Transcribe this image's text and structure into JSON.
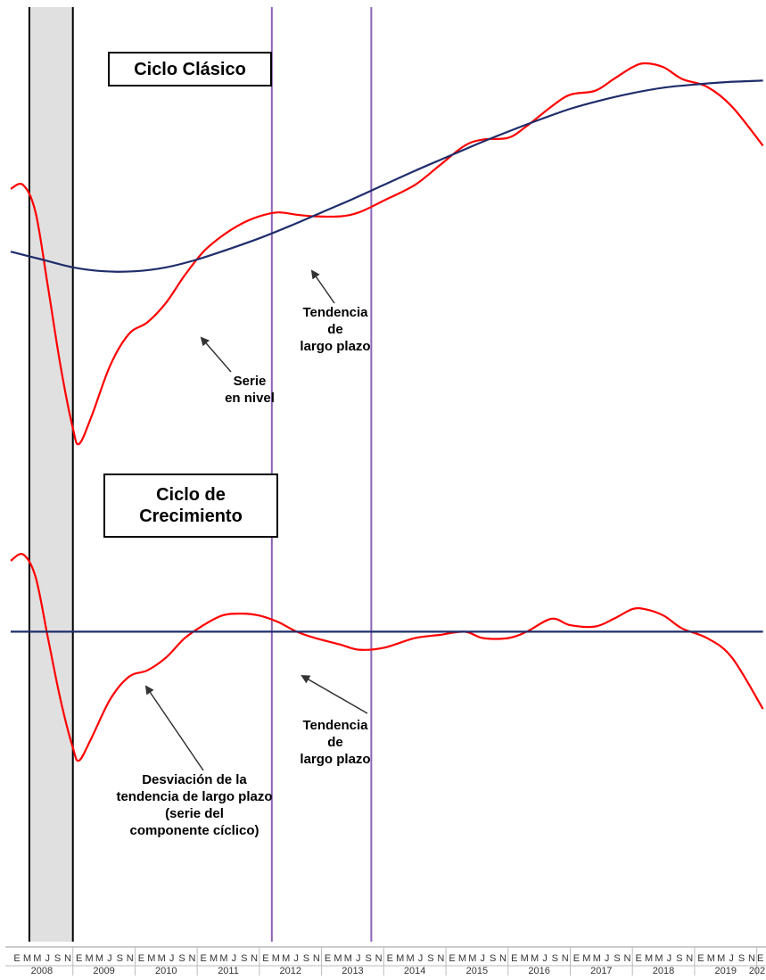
{
  "colors": {
    "series": "#ff0000",
    "trend": "#1f2d6b",
    "recession_band": "#e0e0e0",
    "reference_lines": "#8a63b8",
    "axis_text": "#333333"
  },
  "panels": {
    "top_title": "Ciclo Clásico",
    "bottom_title_line1": "Ciclo de",
    "bottom_title_line2": "Crecimiento"
  },
  "annotations": {
    "serie_en_nivel": [
      "Serie",
      "en nivel"
    ],
    "tendencia_top": [
      "Tendencia",
      "de",
      "largo plazo"
    ],
    "tendencia_bottom": [
      "Tendencia",
      "de",
      "largo plazo"
    ],
    "desviacion": [
      "Desviación de la",
      "tendencia de largo plazo",
      "(serie del",
      "componente cíclico)"
    ]
  },
  "chart_data": [
    {
      "type": "line",
      "panel": "Ciclo Clásico",
      "x_unit": "year",
      "series": [
        {
          "values": [
            [
              2008.0,
              76.5
            ],
            [
              2008.2,
              77.0
            ],
            [
              2008.4,
              73.5
            ],
            [
              2008.6,
              64.0
            ],
            [
              2008.8,
              54.0
            ],
            [
              2009.0,
              46.0
            ],
            [
              2009.1,
              44.0
            ],
            [
              2009.3,
              47.5
            ],
            [
              2009.6,
              54.0
            ],
            [
              2009.9,
              58.0
            ],
            [
              2010.2,
              59.5
            ],
            [
              2010.5,
              62.0
            ],
            [
              2010.8,
              65.5
            ],
            [
              2011.1,
              68.5
            ],
            [
              2011.4,
              70.5
            ],
            [
              2011.7,
              72.0
            ],
            [
              2012.0,
              73.0
            ],
            [
              2012.3,
              73.5
            ],
            [
              2012.6,
              73.2
            ],
            [
              2012.9,
              73.0
            ],
            [
              2013.3,
              73.0
            ],
            [
              2013.6,
              73.5
            ],
            [
              2014.0,
              75.0
            ],
            [
              2014.5,
              77.0
            ],
            [
              2014.9,
              79.5
            ],
            [
              2015.3,
              82.0
            ],
            [
              2015.6,
              82.8
            ],
            [
              2016.0,
              83.0
            ],
            [
              2016.3,
              84.5
            ],
            [
              2016.7,
              87.0
            ],
            [
              2017.0,
              88.5
            ],
            [
              2017.4,
              89.0
            ],
            [
              2017.7,
              90.5
            ],
            [
              2018.0,
              92.0
            ],
            [
              2018.2,
              92.5
            ],
            [
              2018.5,
              92.0
            ],
            [
              2018.8,
              90.5
            ],
            [
              2019.2,
              89.5
            ],
            [
              2019.6,
              87.0
            ],
            [
              2020.1,
              82.0
            ]
          ]
        },
        {
          "values": [
            [
              2008.0,
              68.5
            ],
            [
              2008.5,
              67.5
            ],
            [
              2009.0,
              66.5
            ],
            [
              2009.5,
              66.0
            ],
            [
              2010.0,
              66.0
            ],
            [
              2010.5,
              66.5
            ],
            [
              2011.0,
              67.5
            ],
            [
              2011.5,
              68.8
            ],
            [
              2012.0,
              70.2
            ],
            [
              2012.5,
              71.8
            ],
            [
              2013.0,
              73.5
            ],
            [
              2013.5,
              75.2
            ],
            [
              2014.0,
              77.0
            ],
            [
              2014.5,
              78.8
            ],
            [
              2015.0,
              80.5
            ],
            [
              2015.5,
              82.2
            ],
            [
              2016.0,
              83.8
            ],
            [
              2016.5,
              85.3
            ],
            [
              2017.0,
              86.7
            ],
            [
              2017.5,
              87.8
            ],
            [
              2018.0,
              88.7
            ],
            [
              2018.5,
              89.4
            ],
            [
              2019.0,
              89.8
            ],
            [
              2019.5,
              90.1
            ],
            [
              2020.1,
              90.3
            ]
          ]
        }
      ]
    },
    {
      "type": "line",
      "panel": "Ciclo de Crecimiento",
      "x_unit": "year",
      "series": [
        {
          "values": [
            [
              2008.0,
              11.0
            ],
            [
              2008.2,
              12.0
            ],
            [
              2008.4,
              8.5
            ],
            [
              2008.6,
              -1.0
            ],
            [
              2008.8,
              -10.5
            ],
            [
              2009.0,
              -18.0
            ],
            [
              2009.1,
              -20.0
            ],
            [
              2009.3,
              -16.5
            ],
            [
              2009.6,
              -10.5
            ],
            [
              2009.9,
              -7.0
            ],
            [
              2010.2,
              -6.0
            ],
            [
              2010.5,
              -4.0
            ],
            [
              2010.8,
              -1.0
            ],
            [
              2011.1,
              1.0
            ],
            [
              2011.4,
              2.5
            ],
            [
              2011.7,
              2.8
            ],
            [
              2012.0,
              2.5
            ],
            [
              2012.3,
              1.5
            ],
            [
              2012.6,
              0.0
            ],
            [
              2012.9,
              -1.0
            ],
            [
              2013.3,
              -2.0
            ],
            [
              2013.6,
              -2.8
            ],
            [
              2014.0,
              -2.5
            ],
            [
              2014.5,
              -1.0
            ],
            [
              2014.9,
              -0.5
            ],
            [
              2015.3,
              0.0
            ],
            [
              2015.6,
              -1.0
            ],
            [
              2016.0,
              -1.0
            ],
            [
              2016.3,
              0.0
            ],
            [
              2016.7,
              2.0
            ],
            [
              2017.0,
              1.0
            ],
            [
              2017.4,
              0.8
            ],
            [
              2017.7,
              2.0
            ],
            [
              2018.0,
              3.5
            ],
            [
              2018.2,
              3.5
            ],
            [
              2018.5,
              2.5
            ],
            [
              2018.8,
              0.5
            ],
            [
              2019.2,
              -1.0
            ],
            [
              2019.6,
              -4.0
            ],
            [
              2020.1,
              -12.0
            ]
          ]
        },
        {
          "values": [
            [
              2008.0,
              0.0
            ],
            [
              2020.1,
              0.0
            ]
          ]
        }
      ]
    }
  ],
  "shading": {
    "recession": [
      2008.3,
      2009.0
    ],
    "reference_lines": [
      2012.2,
      2013.8
    ]
  },
  "axis": {
    "months": [
      "E",
      "M",
      "M",
      "J",
      "S",
      "N"
    ],
    "years": [
      "2008",
      "2009",
      "2010",
      "2011",
      "2012",
      "2013",
      "2014",
      "2015",
      "2016",
      "2017",
      "2018",
      "2019",
      "202"
    ]
  }
}
